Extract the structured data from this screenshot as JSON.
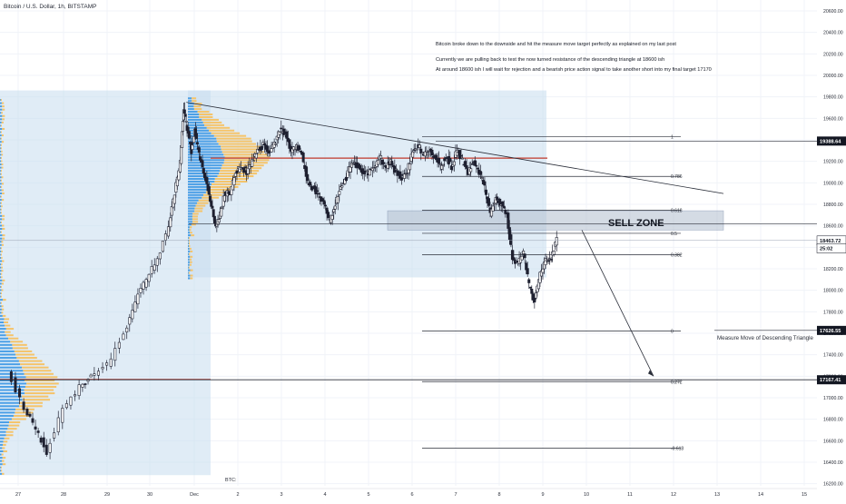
{
  "header": {
    "symbol_title": "Bitcoin / U.S. Dollar, 1h, BITSTAMP"
  },
  "colors": {
    "background": "#ffffff",
    "up_candle": "#1e2030",
    "grid": "#f0f3f8",
    "volume_profile_up": "#f5c46a",
    "volume_profile_down": "#4b9fe6",
    "value_area_box": "#c7dcee",
    "sell_zone_fill": "#b8c4d3",
    "poc_line": "#c0392b"
  },
  "annotations": {
    "line1": "Bitcoin broke down to the downside and hit the measure move target perfectly as explained on my last post",
    "line2": "Currently we are pulling back to test the  now turned resistance of the descending triangle at 18600 ish",
    "line3": "At around 18600 ish I will wait for rejection and a bearish price action signal to take another short into my final target 17170",
    "sell_zone_label": "SELL ZONE",
    "measure_move_label": "Measure Move of Descending Triangle",
    "currency_label": "BTC:"
  },
  "price_labels": [
    {
      "text": "19388.64",
      "value": 19388.64,
      "style": "dark"
    },
    {
      "text": "18463.72",
      "value": 18463.72,
      "style": "light"
    },
    {
      "text": "25:02",
      "value": 18390,
      "style": "light"
    },
    {
      "text": "17626.55",
      "value": 17626.55,
      "style": "dark"
    },
    {
      "text": "17167.41",
      "value": 17167.41,
      "style": "dark"
    }
  ],
  "chart_data": {
    "type": "candlestick",
    "title": "Bitcoin / U.S. Dollar, 1h, BITSTAMP",
    "y_axis_ticks": [
      20600,
      20400,
      20200,
      20000,
      19800,
      19600,
      19400,
      19200,
      19000,
      18800,
      18600,
      18400,
      18200,
      18000,
      17800,
      17600,
      17400,
      17200,
      17000,
      16800,
      16600,
      16400,
      16200
    ],
    "y_axis_tick_labels": [
      "20600.00",
      "20400.00",
      "20200.00",
      "20000.00",
      "19800.00",
      "19600.00",
      "19400.00",
      "19200.00",
      "19000.00",
      "18800.00",
      "18600.00",
      "18400.00",
      "18200.00",
      "18000.00",
      "17800.00",
      "17600.00",
      "17400.00",
      "17200.00",
      "17000.00",
      "16800.00",
      "16600.00",
      "16400.00",
      "16200.00"
    ],
    "ylim": [
      16230,
      20700
    ],
    "x_axis_labels": [
      "27",
      "28",
      "29",
      "30",
      "Dec",
      "2",
      "3",
      "4",
      "5",
      "6",
      "7",
      "8",
      "9",
      "10",
      "11",
      "12",
      "13",
      "14",
      "15"
    ],
    "fib_levels": [
      {
        "label": "1",
        "price": 19430
      },
      {
        "label": "0.786",
        "price": 19060
      },
      {
        "label": "0.618",
        "price": 18745
      },
      {
        "label": "0.5",
        "price": 18530
      },
      {
        "label": "0.382",
        "price": 18330
      },
      {
        "label": "0",
        "price": 17620
      },
      {
        "label": "0.272",
        "price": 17150
      },
      {
        "label": "-0.618",
        "price": 16530
      }
    ],
    "price_path": [
      [
        0.5,
        17250
      ],
      [
        2,
        16900
      ],
      [
        3,
        16700
      ],
      [
        4,
        16500
      ],
      [
        5.5,
        16900
      ],
      [
        7,
        17100
      ],
      [
        8,
        17200
      ],
      [
        9.5,
        17300
      ],
      [
        11,
        17600
      ],
      [
        12,
        17900
      ],
      [
        13,
        18100
      ],
      [
        14,
        18300
      ],
      [
        15,
        18600
      ],
      [
        15.5,
        18900
      ],
      [
        16,
        19200
      ],
      [
        16.3,
        19700
      ],
      [
        16.6,
        19500
      ],
      [
        17,
        19300
      ],
      [
        17.3,
        19500
      ],
      [
        17.6,
        19300
      ],
      [
        18,
        19150
      ],
      [
        18.4,
        19000
      ],
      [
        18.8,
        18800
      ],
      [
        19.2,
        18600
      ],
      [
        19.6,
        18700
      ],
      [
        20,
        18900
      ],
      [
        20.5,
        18900
      ],
      [
        21,
        19100
      ],
      [
        21.5,
        19150
      ],
      [
        22,
        19100
      ],
      [
        22.5,
        19200
      ],
      [
        23,
        19300
      ],
      [
        23.5,
        19350
      ],
      [
        24,
        19300
      ],
      [
        24.5,
        19350
      ],
      [
        25,
        19500
      ],
      [
        25.5,
        19450
      ],
      [
        26,
        19300
      ],
      [
        26.5,
        19350
      ],
      [
        27,
        19250
      ],
      [
        27.5,
        19000
      ],
      [
        28,
        18950
      ],
      [
        28.5,
        18900
      ],
      [
        29,
        18800
      ],
      [
        29.5,
        18650
      ],
      [
        30,
        18800
      ],
      [
        30.5,
        18950
      ],
      [
        31,
        19050
      ],
      [
        31.5,
        19200
      ],
      [
        32,
        19150
      ],
      [
        32.5,
        19100
      ],
      [
        33,
        19100
      ],
      [
        33.5,
        19150
      ],
      [
        34,
        19250
      ],
      [
        34.5,
        19150
      ],
      [
        35,
        19200
      ],
      [
        35.5,
        19100
      ],
      [
        36,
        19050
      ],
      [
        36.5,
        19100
      ],
      [
        37,
        19300
      ],
      [
        37.5,
        19350
      ],
      [
        38,
        19250
      ],
      [
        38.5,
        19300
      ],
      [
        39,
        19250
      ],
      [
        39.5,
        19150
      ],
      [
        40,
        19250
      ],
      [
        40.5,
        19150
      ],
      [
        41,
        19300
      ],
      [
        41.5,
        19200
      ],
      [
        42,
        19100
      ],
      [
        42.5,
        19200
      ],
      [
        43,
        19100
      ],
      [
        43.5,
        18950
      ],
      [
        44,
        18700
      ],
      [
        44.5,
        18850
      ],
      [
        45,
        18800
      ],
      [
        45.5,
        18700
      ],
      [
        46,
        18300
      ],
      [
        46.5,
        18250
      ],
      [
        47,
        18350
      ],
      [
        47.5,
        18050
      ],
      [
        48,
        17900
      ],
      [
        48.5,
        18150
      ],
      [
        49,
        18300
      ],
      [
        49.5,
        18300
      ],
      [
        50,
        18480
      ]
    ],
    "x_units_note_removed": true,
    "current_price": 18463.72,
    "target_price": 17167.41,
    "measure_move_low": 17626.55,
    "resistance_high": 19388.64,
    "sell_zone": [
      18560,
      18740
    ],
    "descending_trendline": [
      [
        16.5,
        19750
      ],
      [
        65,
        18900
      ]
    ],
    "poc_levels": [
      19230,
      17170
    ]
  }
}
